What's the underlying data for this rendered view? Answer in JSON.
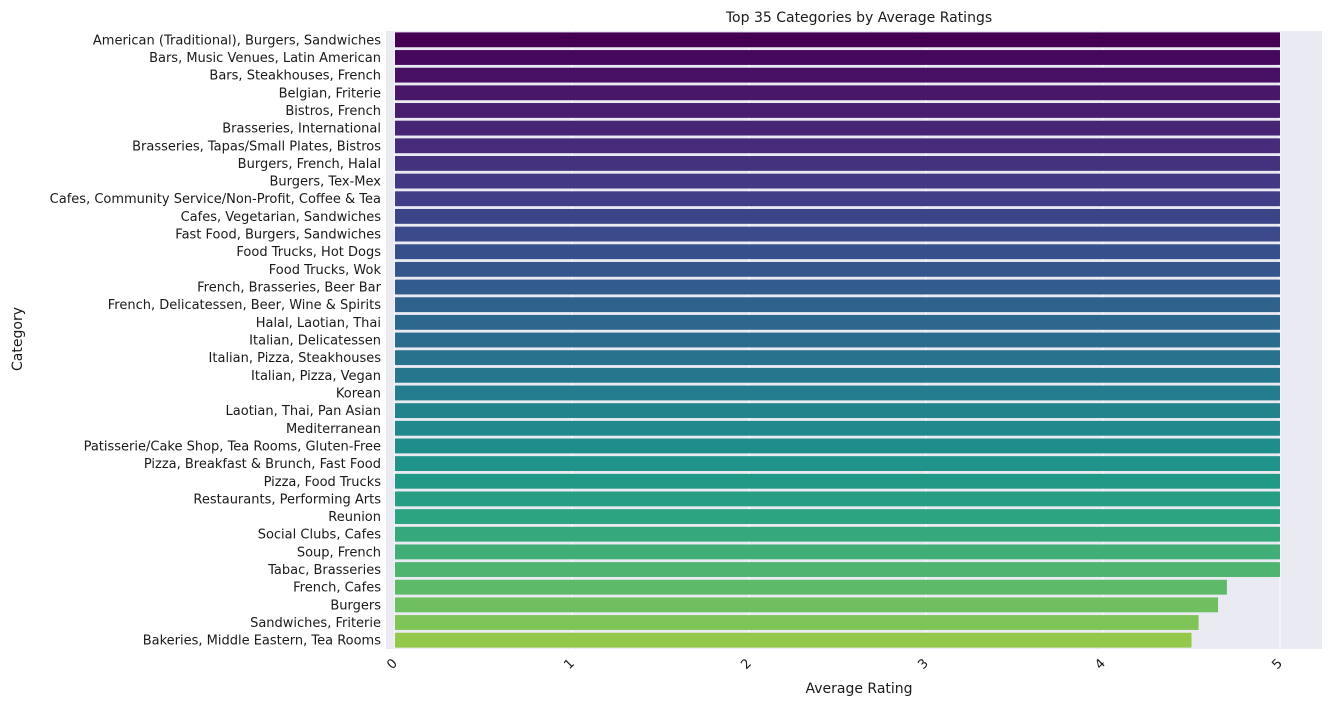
{
  "chart_data": {
    "type": "bar",
    "orientation": "horizontal",
    "title": "Top 35 Categories by Average Ratings",
    "xlabel": "Average Rating",
    "ylabel": "Category",
    "xlim": [
      0,
      5.25
    ],
    "xticks": [
      0,
      1,
      2,
      3,
      4,
      5
    ],
    "grid": true,
    "background": "#eaeaf2",
    "categories": [
      "American (Traditional), Burgers, Sandwiches",
      "Bars, Music Venues, Latin American",
      "Bars, Steakhouses, French",
      "Belgian, Friterie",
      "Bistros, French",
      "Brasseries, International",
      "Brasseries, Tapas/Small Plates, Bistros",
      "Burgers, French, Halal",
      "Burgers, Tex-Mex",
      "Cafes, Community Service/Non-Profit, Coffee & Tea",
      "Cafes, Vegetarian, Sandwiches",
      "Fast Food, Burgers, Sandwiches",
      "Food Trucks, Hot Dogs",
      "Food Trucks, Wok",
      "French, Brasseries, Beer Bar",
      "French, Delicatessen, Beer, Wine & Spirits",
      "Halal, Laotian, Thai",
      "Italian, Delicatessen",
      "Italian, Pizza, Steakhouses",
      "Italian, Pizza, Vegan",
      "Korean",
      "Laotian, Thai, Pan Asian",
      "Mediterranean",
      "Patisserie/Cake Shop, Tea Rooms, Gluten-Free",
      "Pizza, Breakfast & Brunch, Fast Food",
      "Pizza, Food Trucks",
      "Restaurants, Performing Arts",
      "Reunion",
      "Social Clubs, Cafes",
      "Soup, French",
      "Tabac, Brasseries",
      "French, Cafes",
      "Burgers",
      "Sandwiches, Friterie",
      "Bakeries, Middle Eastern, Tea Rooms"
    ],
    "values": [
      5,
      5,
      5,
      5,
      5,
      5,
      5,
      5,
      5,
      5,
      5,
      5,
      5,
      5,
      5,
      5,
      5,
      5,
      5,
      5,
      5,
      5,
      5,
      5,
      5,
      5,
      5,
      5,
      5,
      5,
      5,
      4.7,
      4.65,
      4.54,
      4.5
    ],
    "colors": [
      "#440154",
      "#46085c",
      "#471063",
      "#481769",
      "#481d6f",
      "#472575",
      "#462b7a",
      "#44327f",
      "#423883",
      "#3f3e86",
      "#3c4488",
      "#3a4a8a",
      "#36508c",
      "#34568c",
      "#315c8d",
      "#2f618d",
      "#2c678e",
      "#2a6c8e",
      "#28728e",
      "#26778e",
      "#247d8e",
      "#22838d",
      "#21888d",
      "#1f8e8b",
      "#20948a",
      "#219987",
      "#259e84",
      "#2ca381",
      "#35a97c",
      "#40ae76",
      "#4eb46f",
      "#5cba68",
      "#6dbf5f",
      "#7fc456",
      "#92c94b"
    ]
  }
}
